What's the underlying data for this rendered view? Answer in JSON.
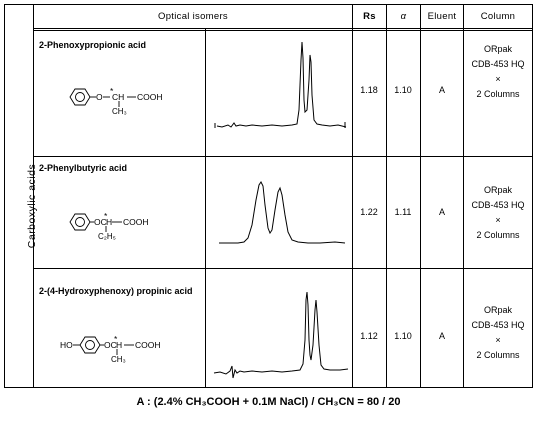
{
  "table": {
    "side_label": "Carboxylic acids",
    "headers": {
      "isomers": "Optical isomers",
      "rs": "Rs",
      "alpha": "α",
      "eluent": "Eluent",
      "column": "Column"
    },
    "rows": [
      {
        "name": "2-Phenoxypropionic acid",
        "structure": {
          "left": "O",
          "substituent": "CH₃",
          "acid": "COOH"
        },
        "rs": "1.18",
        "alpha": "1.10",
        "eluent": "A",
        "column": [
          "ORpak",
          "CDB-453 HQ",
          "×",
          "2 Columns"
        ]
      },
      {
        "name": "2-Phenylbutyric acid",
        "structure": {
          "left": "OC",
          "substituent": "C₂H₅",
          "acid": "COOH"
        },
        "rs": "1.22",
        "alpha": "1.11",
        "eluent": "A",
        "column": [
          "ORpak",
          "CDB-453 HQ",
          "×",
          "2 Columns"
        ]
      },
      {
        "name": "2-(4-Hydroxyphenoxy) propinic acid",
        "structure": {
          "prefix": "HO",
          "left": "OC",
          "substituent": "CH₃",
          "acid": "COOH"
        },
        "rs": "1.12",
        "alpha": "1.10",
        "eluent": "A",
        "column": [
          "ORpak",
          "CDB-453 HQ",
          "×",
          "2 Columns"
        ]
      }
    ]
  },
  "footer": "A : (2.4% CH₃COOH + 0.1M NaCl) / CH₃CN = 80 / 20"
}
